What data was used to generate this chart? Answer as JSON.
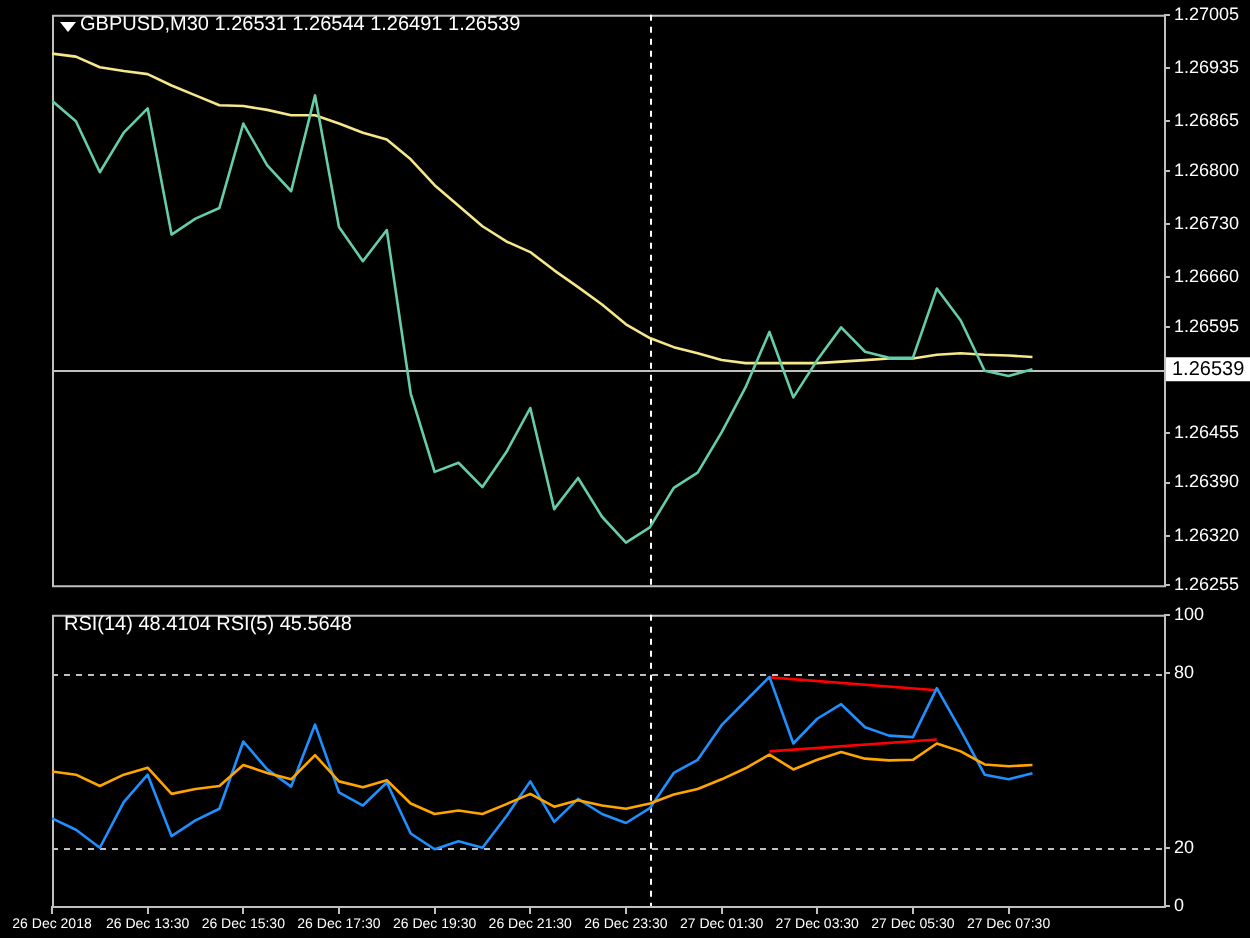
{
  "chart_data": [
    {
      "type": "line",
      "title": "GBPUSD,M30 1.26531 1.26544 1.26491 1.26539",
      "x": [
        "2018-12-26T11:30",
        "2018-12-26T12:00",
        "2018-12-26T12:30",
        "2018-12-26T13:00",
        "2018-12-26T13:30",
        "2018-12-26T14:00",
        "2018-12-26T14:30",
        "2018-12-26T15:00",
        "2018-12-26T15:30",
        "2018-12-26T16:00",
        "2018-12-26T16:30",
        "2018-12-26T17:00",
        "2018-12-26T17:30",
        "2018-12-26T18:00",
        "2018-12-26T18:30",
        "2018-12-26T19:00",
        "2018-12-26T19:30",
        "2018-12-26T20:00",
        "2018-12-26T20:30",
        "2018-12-26T21:00",
        "2018-12-26T21:30",
        "2018-12-26T22:00",
        "2018-12-26T22:30",
        "2018-12-26T23:00",
        "2018-12-26T23:30",
        "2018-12-27T00:00",
        "2018-12-27T00:30",
        "2018-12-27T01:00",
        "2018-12-27T01:30",
        "2018-12-27T02:00",
        "2018-12-27T02:30",
        "2018-12-27T03:00",
        "2018-12-27T03:30",
        "2018-12-27T04:00",
        "2018-12-27T04:30",
        "2018-12-27T05:00",
        "2018-12-27T05:30",
        "2018-12-27T06:00",
        "2018-12-27T06:30",
        "2018-12-27T07:00",
        "2018-12-27T07:30",
        "2018-12-27T08:00"
      ],
      "series": [
        {
          "color": "#66cdaa",
          "values": [
            1.26892,
            1.26865,
            1.26798,
            1.2685,
            1.26882,
            1.26716,
            1.26737,
            1.26751,
            1.26862,
            1.26807,
            1.26773,
            1.26899,
            1.26726,
            1.26681,
            1.26722,
            1.26507,
            1.26404,
            1.26416,
            1.26384,
            1.2643,
            1.26488,
            1.26355,
            1.26396,
            1.26345,
            1.26311,
            1.26331,
            1.26383,
            1.26403,
            1.26456,
            1.26515,
            1.26588,
            1.26502,
            1.26551,
            1.26594,
            1.26562,
            1.26554,
            1.26554,
            1.26645,
            1.26603,
            1.26537,
            1.2653,
            1.26539
          ]
        },
        {
          "color": "#f5e78a",
          "values": [
            1.26954,
            1.2695,
            1.26936,
            1.26931,
            1.26927,
            1.26912,
            1.26899,
            1.26886,
            1.26885,
            1.2688,
            1.26873,
            1.26873,
            1.26862,
            1.2685,
            1.26841,
            1.26815,
            1.26781,
            1.26754,
            1.26727,
            1.26707,
            1.26693,
            1.26669,
            1.26647,
            1.26624,
            1.26598,
            1.2658,
            1.26568,
            1.2656,
            1.26551,
            1.26547,
            1.26547,
            1.26547,
            1.26547,
            1.26549,
            1.26551,
            1.26553,
            1.26553,
            1.26558,
            1.2656,
            1.26558,
            1.26557,
            1.26555
          ]
        }
      ],
      "xlim": [
        "2018-12-26T11:30",
        "2018-12-27T10:45"
      ],
      "ylim": [
        1.26255,
        1.27005
      ],
      "yticks": [
        1.27005,
        1.26935,
        1.26865,
        {
          "value": 1.268,
          "label": "1.26800"
        },
        {
          "value": 1.2673,
          "label": "1.26730"
        },
        {
          "value": 1.2666,
          "label": "1.26660"
        },
        1.26595,
        1.26455,
        {
          "value": 1.2639,
          "label": "1.26390"
        },
        {
          "value": 1.2632,
          "label": "1.26320"
        },
        1.26255
      ],
      "tick_labels": "y",
      "ref_lines": [
        {
          "axis": "y",
          "value": 1.26539,
          "label": "1.26539",
          "color": "#c0c0c0",
          "line_style": "solid"
        },
        {
          "axis": "x",
          "value": "2018-12-27T00:00",
          "color": "#ffffff",
          "line_style": "dashed"
        }
      ],
      "grid": false,
      "legend": false,
      "marker": "none"
    },
    {
      "type": "line",
      "title": "RSI(14) 48.4104 RSI(5) 45.5648",
      "x": [
        "2018-12-26T11:30",
        "2018-12-26T12:00",
        "2018-12-26T12:30",
        "2018-12-26T13:00",
        "2018-12-26T13:30",
        "2018-12-26T14:00",
        "2018-12-26T14:30",
        "2018-12-26T15:00",
        "2018-12-26T15:30",
        "2018-12-26T16:00",
        "2018-12-26T16:30",
        "2018-12-26T17:00",
        "2018-12-26T17:30",
        "2018-12-26T18:00",
        "2018-12-26T18:30",
        "2018-12-26T19:00",
        "2018-12-26T19:30",
        "2018-12-26T20:00",
        "2018-12-26T20:30",
        "2018-12-26T21:00",
        "2018-12-26T21:30",
        "2018-12-26T22:00",
        "2018-12-26T22:30",
        "2018-12-26T23:00",
        "2018-12-26T23:30",
        "2018-12-27T00:00",
        "2018-12-27T00:30",
        "2018-12-27T01:00",
        "2018-12-27T01:30",
        "2018-12-27T02:00",
        "2018-12-27T02:30",
        "2018-12-27T03:00",
        "2018-12-27T03:30",
        "2018-12-27T04:00",
        "2018-12-27T04:30",
        "2018-12-27T05:00",
        "2018-12-27T05:30",
        "2018-12-27T06:00",
        "2018-12-27T06:30",
        "2018-12-27T07:00",
        "2018-12-27T07:30",
        "2018-12-27T08:00"
      ],
      "series": [
        {
          "color": "#ffa500",
          "values": [
            46.2,
            45.1,
            41.2,
            45.1,
            47.5,
            38.5,
            40.2,
            41.2,
            48.4,
            45.7,
            43.5,
            51.8,
            42.8,
            40.8,
            43.2,
            35.2,
            31.6,
            32.8,
            31.6,
            35,
            38.5,
            34.1,
            36.3,
            34.5,
            33.4,
            35.2,
            38.3,
            40.2,
            43.5,
            47.3,
            52,
            46.9,
            50.2,
            52.9,
            50.6,
            50,
            50.2,
            55.8,
            53.1,
            48.6,
            48,
            48.4
          ]
        },
        {
          "color": "#1e90ff",
          "values": [
            30.1,
            26.2,
            20,
            35.7,
            45.1,
            24,
            29.4,
            33.4,
            56.5,
            46.9,
            41,
            62.3,
            39,
            34.5,
            42.4,
            24.9,
            19.5,
            22.2,
            20,
            30.8,
            42.8,
            28.9,
            36.8,
            31.6,
            28.5,
            33.6,
            45.7,
            50.2,
            62.1,
            70.4,
            78.7,
            55.8,
            64.3,
            69.3,
            61.4,
            58.5,
            58,
            74.8,
            60.3,
            45.1,
            43.5,
            45.6
          ]
        },
        {
          "type": "line",
          "color": "#ff0000",
          "x": [
            "2018-12-27T02:30",
            "2018-12-27T06:00"
          ],
          "values": [
            78.5,
            74.1
          ]
        },
        {
          "type": "line",
          "color": "#ff0000",
          "x": [
            "2018-12-27T02:30",
            "2018-12-27T06:00"
          ],
          "values": [
            53.1,
            57.2
          ]
        }
      ],
      "xlim": [
        "2018-12-26T11:30",
        "2018-12-27T10:45"
      ],
      "xticks": [
        {
          "value": "2018-12-26T11:30",
          "label": "26 Dec 2018"
        },
        {
          "value": "2018-12-26T13:30",
          "label": "26 Dec 13:30"
        },
        {
          "value": "2018-12-26T15:30",
          "label": "26 Dec 15:30"
        },
        {
          "value": "2018-12-26T17:30",
          "label": "26 Dec 17:30"
        },
        {
          "value": "2018-12-26T19:30",
          "label": "26 Dec 19:30"
        },
        {
          "value": "2018-12-26T21:30",
          "label": "26 Dec 21:30"
        },
        {
          "value": "2018-12-26T23:30",
          "label": "26 Dec 23:30"
        },
        {
          "value": "2018-12-27T01:30",
          "label": "27 Dec 01:30"
        },
        {
          "value": "2018-12-27T03:30",
          "label": "27 Dec 03:30"
        },
        {
          "value": "2018-12-27T05:30",
          "label": "27 Dec 05:30"
        },
        {
          "value": "2018-12-27T07:30",
          "label": "27 Dec 07:30"
        }
      ],
      "ylim": [
        0,
        100
      ],
      "yticks": [
        0,
        20,
        80,
        100
      ],
      "ref_lines": [
        {
          "axis": "y",
          "value": 80,
          "color": "#c0c0c0",
          "line_style": "dashed"
        },
        {
          "axis": "y",
          "value": 20,
          "color": "#c0c0c0",
          "line_style": "dashed"
        },
        {
          "axis": "x",
          "value": "2018-12-27T00:00",
          "color": "#ffffff",
          "line_style": "dashed"
        }
      ],
      "grid": false,
      "legend": false,
      "marker": "none"
    }
  ]
}
